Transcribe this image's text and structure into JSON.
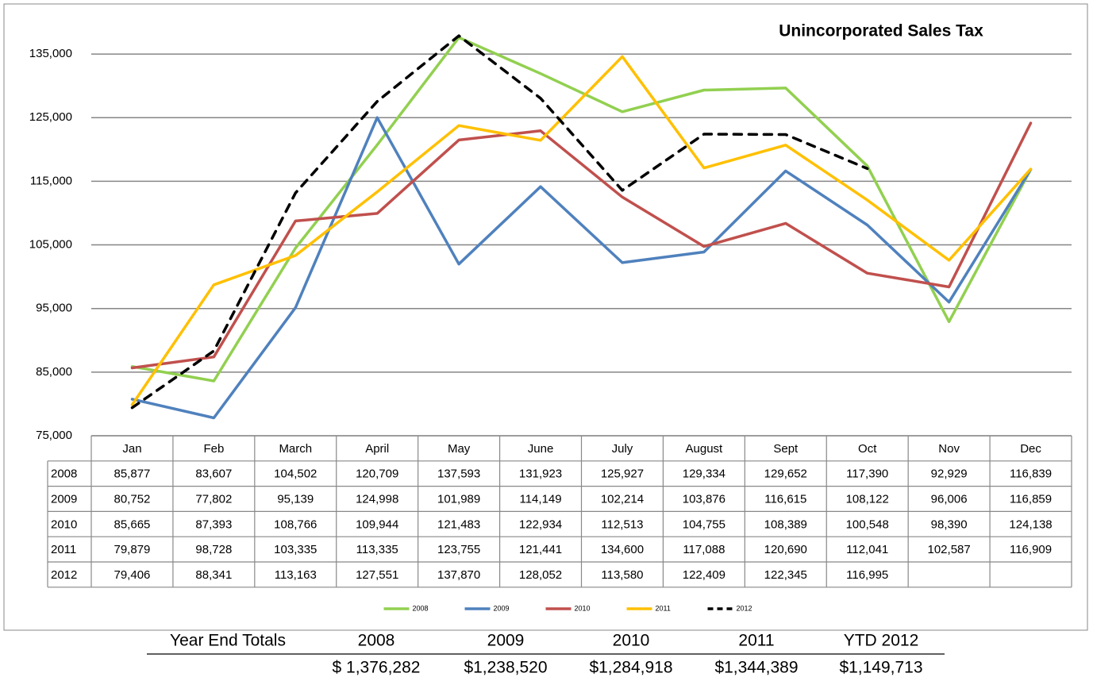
{
  "chart_data": {
    "type": "line",
    "title": "Unincorporated Sales Tax",
    "categories": [
      "Jan",
      "Feb",
      "March",
      "April",
      "May",
      "June",
      "July",
      "August",
      "Sept",
      "Oct",
      "Nov",
      "Dec"
    ],
    "series": [
      {
        "name": "2008",
        "color": "#92d050",
        "dashed": false,
        "values": [
          85877,
          83607,
          104502,
          120709,
          137593,
          131923,
          125927,
          129334,
          129652,
          117390,
          92929,
          116839
        ],
        "value_labels": [
          "85,877",
          "83,607",
          "104,502",
          "120,709",
          "137,593",
          "131,923",
          "125,927",
          "129,334",
          "129,652",
          "117,390",
          "92,929",
          "116,839"
        ]
      },
      {
        "name": "2009",
        "color": "#4f81bd",
        "dashed": false,
        "values": [
          80752,
          77802,
          95139,
          124998,
          101989,
          114149,
          102214,
          103876,
          116615,
          108122,
          96006,
          116859
        ],
        "value_labels": [
          "80,752",
          "77,802",
          "95,139",
          "124,998",
          "101,989",
          "114,149",
          "102,214",
          "103,876",
          "116,615",
          "108,122",
          "96,006",
          "116,859"
        ]
      },
      {
        "name": "2010",
        "color": "#c0504d",
        "dashed": false,
        "values": [
          85665,
          87393,
          108766,
          109944,
          121483,
          122934,
          112513,
          104755,
          108389,
          100548,
          98390,
          124138
        ],
        "value_labels": [
          "85,665",
          "87,393",
          "108,766",
          "109,944",
          "121,483",
          "122,934",
          "112,513",
          "104,755",
          "108,389",
          "100,548",
          "98,390",
          "124,138"
        ]
      },
      {
        "name": "2011",
        "color": "#ffc000",
        "dashed": false,
        "values": [
          79879,
          98728,
          103335,
          113335,
          123755,
          121441,
          134600,
          117088,
          120690,
          112041,
          102587,
          116909
        ],
        "value_labels": [
          "79,879",
          "98,728",
          "103,335",
          "113,335",
          "123,755",
          "121,441",
          "134,600",
          "117,088",
          "120,690",
          "112,041",
          "102,587",
          "116,909"
        ]
      },
      {
        "name": "2012",
        "color": "#000000",
        "dashed": true,
        "values": [
          79406,
          88341,
          113163,
          127551,
          137870,
          128052,
          113580,
          122409,
          122345,
          116995,
          null,
          null
        ],
        "value_labels": [
          "79,406",
          "88,341",
          "113,163",
          "127,551",
          "137,870",
          "128,052",
          "113,580",
          "122,409",
          "122,345",
          "116,995",
          null,
          null
        ]
      }
    ],
    "ylim": [
      75000,
      140000
    ],
    "yticks": [
      {
        "value": 75000,
        "label": "75,000"
      },
      {
        "value": 85000,
        "label": "85,000"
      },
      {
        "value": 95000,
        "label": "95,000"
      },
      {
        "value": 105000,
        "label": "105,000"
      },
      {
        "value": 115000,
        "label": "115,000"
      },
      {
        "value": 125000,
        "label": "125,000"
      },
      {
        "value": 135000,
        "label": "135,000"
      }
    ],
    "grid": true,
    "legend": "bottom"
  },
  "year_end_totals": {
    "label": "Year End Totals",
    "columns": [
      {
        "header": "2008",
        "total": "$ 1,376,282"
      },
      {
        "header": "2009",
        "total": "$1,238,520"
      },
      {
        "header": "2010",
        "total": "$1,284,918"
      },
      {
        "header": "2011",
        "total": "$1,344,389"
      },
      {
        "header": "YTD 2012",
        "total": "$1,149,713"
      }
    ]
  }
}
